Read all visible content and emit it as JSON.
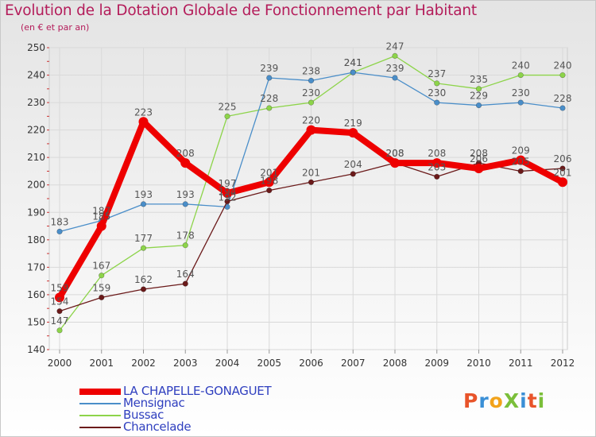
{
  "header": {
    "title": "Evolution de la Dotation Globale de Fonctionnement par Habitant",
    "subtitle": "(en € et par an)"
  },
  "logo": {
    "text": "ProXiti",
    "colors": [
      "#e8542a",
      "#3a8fd6",
      "#f2a31b",
      "#7bbf3a",
      "#3a8fd6",
      "#e8542a",
      "#7bbf3a"
    ]
  },
  "chart_data": {
    "type": "line",
    "x": [
      "2000",
      "2001",
      "2002",
      "2003",
      "2004",
      "2005",
      "2006",
      "2007",
      "2008",
      "2009",
      "2010",
      "2011",
      "2012"
    ],
    "ylim": [
      140,
      250
    ],
    "yticks": [
      140,
      150,
      160,
      170,
      180,
      190,
      200,
      210,
      220,
      230,
      240,
      250
    ],
    "grid": true,
    "legend_position": "bottom-left",
    "series": [
      {
        "name": "LA CHAPELLE-GONAGUET",
        "color": "#ee0000",
        "values": [
          159,
          185,
          223,
          208,
          197,
          201,
          220,
          219,
          208,
          208,
          206,
          209,
          201
        ]
      },
      {
        "name": "Mensignac",
        "color": "#4a8ec9",
        "values": [
          183,
          187,
          193,
          193,
          192,
          239,
          238,
          241,
          239,
          230,
          229,
          230,
          228
        ]
      },
      {
        "name": "Bussac",
        "color": "#8dd44a",
        "values": [
          147,
          167,
          177,
          178,
          225,
          228,
          230,
          241,
          247,
          237,
          235,
          240,
          240
        ]
      },
      {
        "name": "Chancelade",
        "color": "#6b1a1a",
        "values": [
          154,
          159,
          162,
          164,
          194,
          198,
          201,
          204,
          208,
          203,
          208,
          205,
          206
        ]
      }
    ]
  }
}
